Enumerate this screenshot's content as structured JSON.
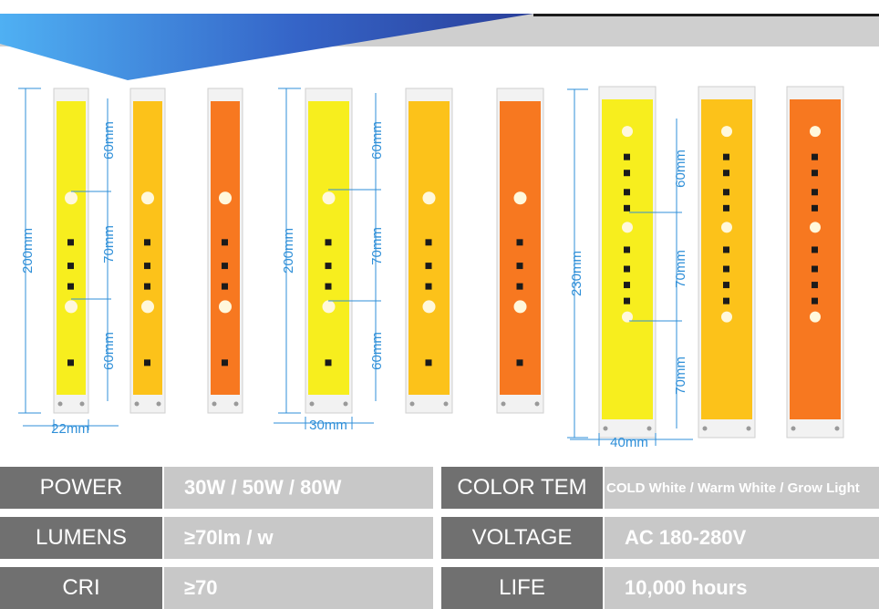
{
  "dimensions": {
    "group1": {
      "height": "200mm",
      "width": "22mm",
      "top": "60mm",
      "middle": "70mm",
      "bottom": "60mm"
    },
    "group2": {
      "height": "200mm",
      "width": "30mm",
      "top": "60mm",
      "middle": "70mm",
      "bottom": "60mm"
    },
    "group3": {
      "height": "230mm",
      "width": "40mm",
      "top": "60mm",
      "middle": "70mm",
      "bottom": "70mm"
    }
  },
  "chip_colors": {
    "cold_white": "#f7ee1e",
    "warm_white": "#fcc21a",
    "grow_light": "#f77820",
    "dimension_line": "#2f8fd8"
  },
  "specs": {
    "left": [
      {
        "label": "POWER",
        "value": "30W / 50W / 80W"
      },
      {
        "label": "LUMENS",
        "value": "≥70lm / w"
      },
      {
        "label": "CRI",
        "value": "≥70"
      }
    ],
    "right": [
      {
        "label": "COLOR  TEM",
        "value": "COLD White / Warm White / Grow Light"
      },
      {
        "label": "VOLTAGE",
        "value": "AC 180-280V"
      },
      {
        "label": "LIFE",
        "value": "10,000 hours"
      }
    ]
  }
}
